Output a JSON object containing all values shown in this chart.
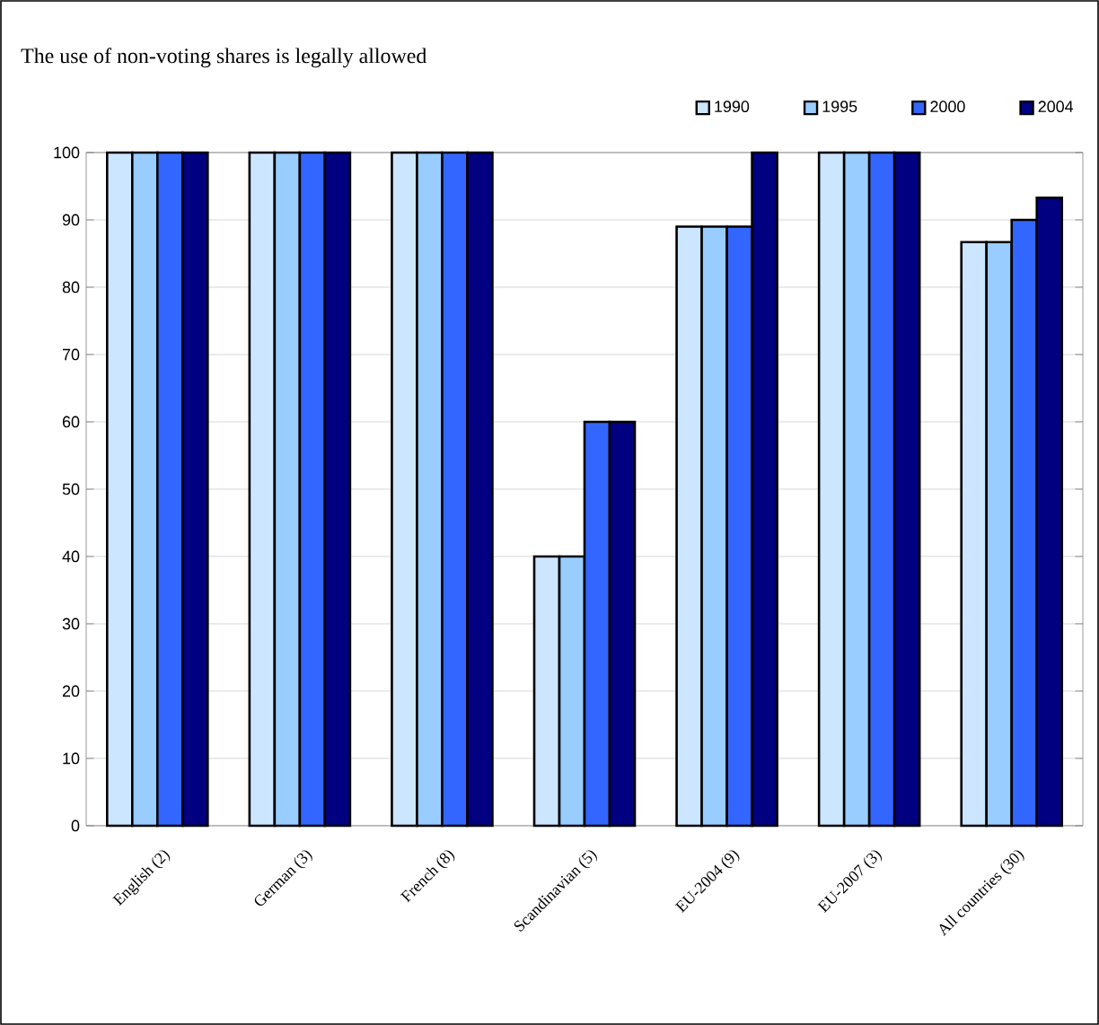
{
  "chart_data": {
    "type": "bar",
    "title": "The use of non-voting shares is legally allowed",
    "categories": [
      "English (2)",
      "German (3)",
      "French (8)",
      "Scandinavian (5)",
      "EU-2004 (9)",
      "EU-2007 (3)",
      "All countries (30)"
    ],
    "series": [
      {
        "name": "1990",
        "color": "#cce6ff",
        "values": [
          100,
          100,
          100,
          40,
          89,
          100,
          86.7
        ]
      },
      {
        "name": "1995",
        "color": "#99ccff",
        "values": [
          100,
          100,
          100,
          40,
          89,
          100,
          86.7
        ]
      },
      {
        "name": "2000",
        "color": "#3366ff",
        "values": [
          100,
          100,
          100,
          60,
          89,
          100,
          90
        ]
      },
      {
        "name": "2004",
        "color": "#000080",
        "values": [
          100,
          100,
          100,
          60,
          100,
          100,
          93.3
        ]
      }
    ],
    "ylim": [
      0,
      100
    ],
    "yticks": [
      0,
      10,
      20,
      30,
      40,
      50,
      60,
      70,
      80,
      90,
      100
    ],
    "grid": "y",
    "legend": "top right"
  }
}
